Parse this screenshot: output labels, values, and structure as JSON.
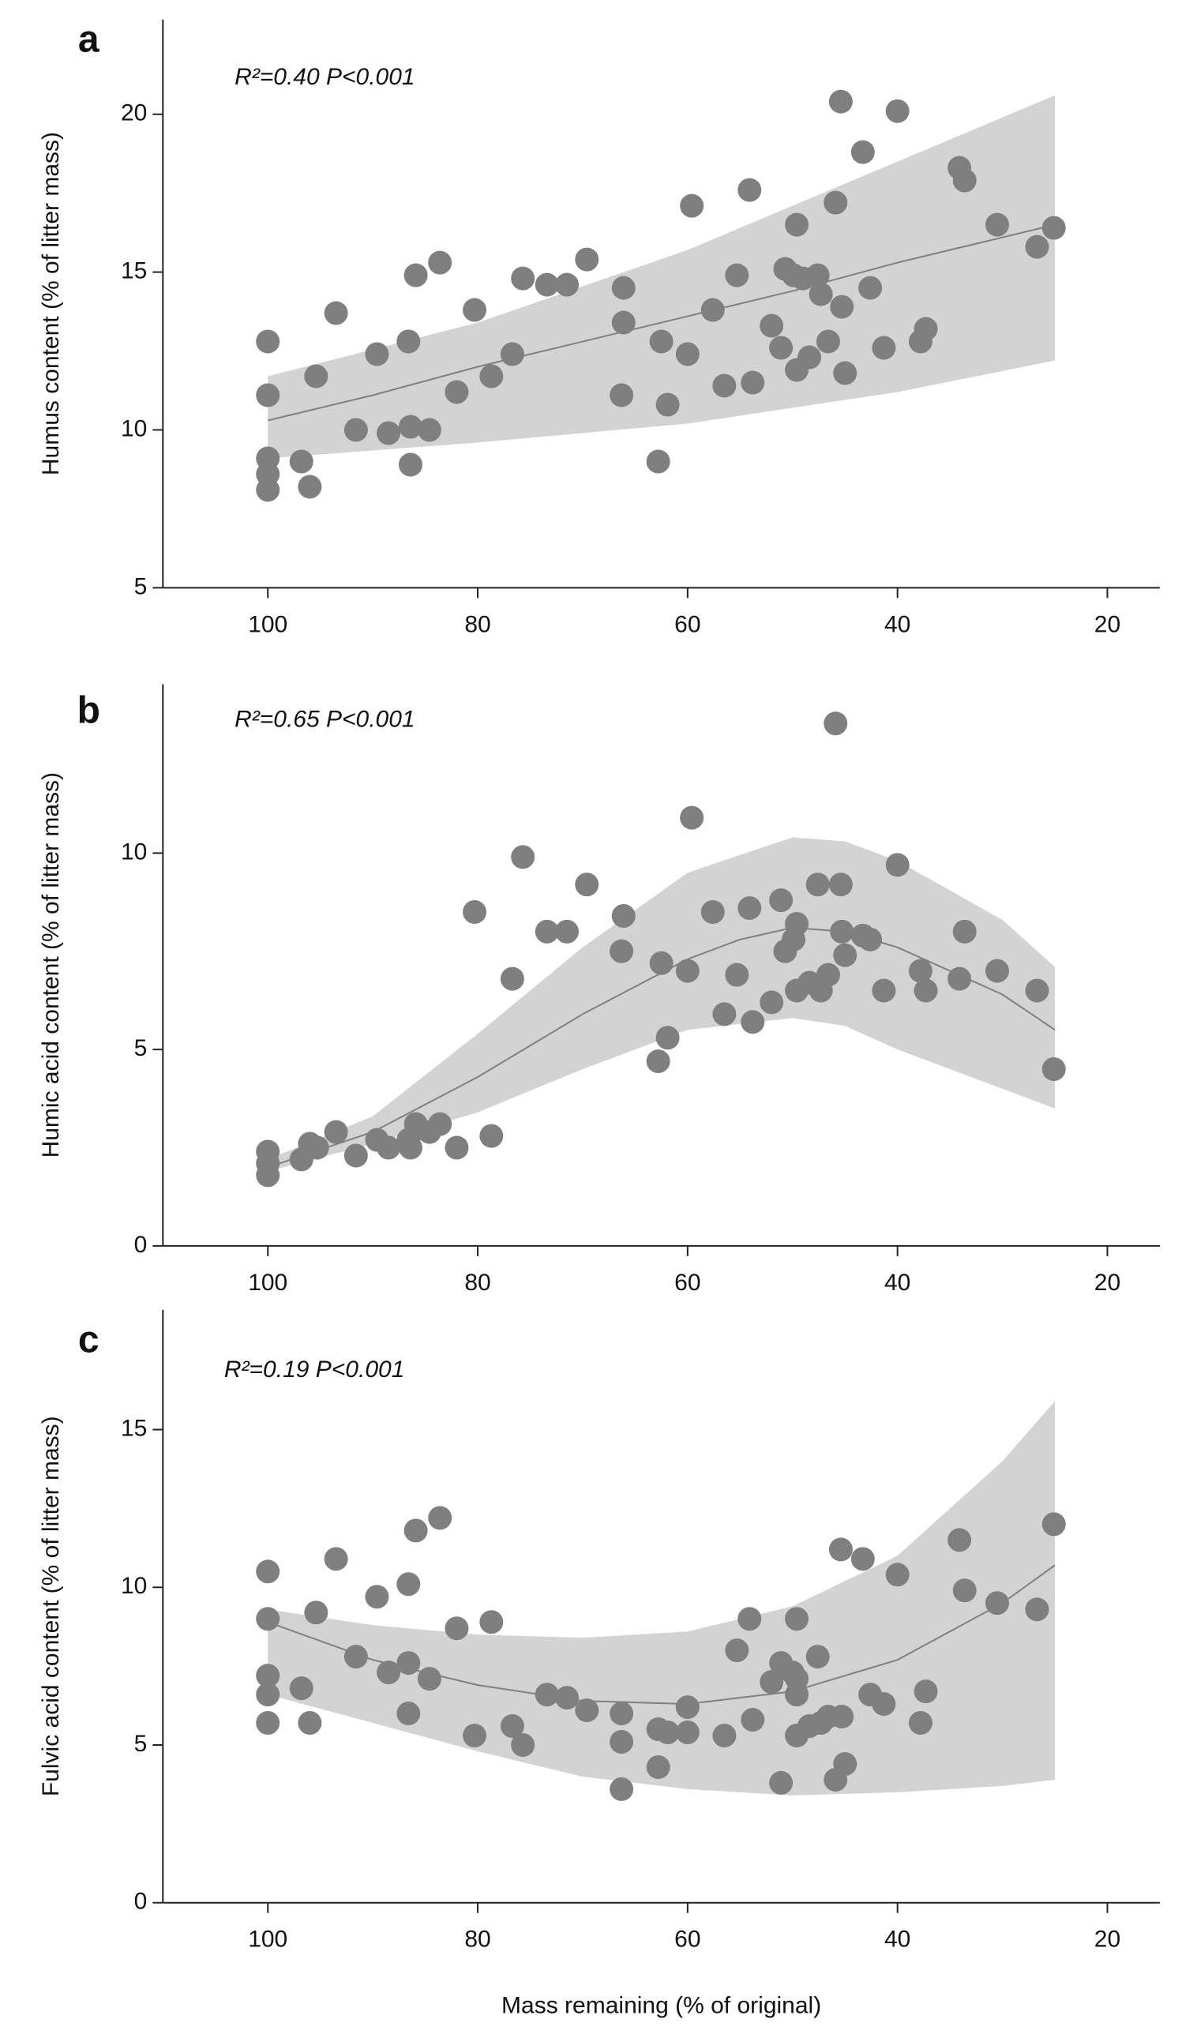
{
  "chart_data": [
    {
      "type": "scatter",
      "panel": "a",
      "annotation": "R²=0.40  P<0.001",
      "ylabel": "Humus content (% of litter mass)",
      "x": [
        100,
        100,
        100,
        100,
        100,
        96.8,
        96,
        95.4,
        93.5,
        91.6,
        89.6,
        88.5,
        86.6,
        86.4,
        86.4,
        85.9,
        84.6,
        83.6,
        82,
        80.3,
        78.7,
        76.7,
        75.7,
        73.4,
        71.5,
        69.6,
        66.3,
        66.1,
        66.1,
        62.8,
        62.5,
        61.9,
        60,
        59.6,
        57.6,
        56.5,
        55.3,
        54.1,
        53.8,
        52,
        51.1,
        50.7,
        49.9,
        49.6,
        49.6,
        49,
        48.4,
        47.6,
        47.3,
        46.6,
        45.9,
        45.4,
        45.3,
        45,
        43.3,
        42.6,
        41.3,
        40,
        37.8,
        37.3,
        34.1,
        33.6,
        30.5,
        26.7,
        25.1
      ],
      "values": [
        12.8,
        11.1,
        9.1,
        8.6,
        8.1,
        9.0,
        8.2,
        11.7,
        13.7,
        10.0,
        12.4,
        9.9,
        12.8,
        10.1,
        8.9,
        14.9,
        10.0,
        15.3,
        11.2,
        13.8,
        11.7,
        12.4,
        14.8,
        14.6,
        14.6,
        15.4,
        11.1,
        13.4,
        14.5,
        9.0,
        12.8,
        10.8,
        12.4,
        17.1,
        13.8,
        11.4,
        14.9,
        17.6,
        11.5,
        13.3,
        12.6,
        15.1,
        14.9,
        16.5,
        11.9,
        14.8,
        12.3,
        14.9,
        14.3,
        12.8,
        17.2,
        20.4,
        13.9,
        11.8,
        18.8,
        14.5,
        12.6,
        20.1,
        12.8,
        13.2,
        18.3,
        17.9,
        16.5,
        15.8,
        16.4
      ],
      "color": "#7f7f7f",
      "fit": {
        "x": [
          100,
          90,
          80,
          70,
          60,
          50,
          40,
          30,
          25
        ],
        "values": [
          10.3,
          11.1,
          12.0,
          12.8,
          13.6,
          14.4,
          15.3,
          16.1,
          16.5
        ],
        "color": "#808080"
      },
      "band": {
        "x": [
          100,
          80,
          60,
          40,
          25
        ],
        "upper": [
          11.7,
          13.4,
          15.7,
          18.5,
          20.6
        ],
        "lower": [
          9.1,
          9.6,
          10.2,
          11.2,
          12.2
        ],
        "color": "#d3d3d3"
      },
      "xlim": [
        110,
        15
      ],
      "xticks": [
        100,
        80,
        60,
        40,
        20
      ],
      "ylim": [
        5,
        23
      ],
      "yticks": [
        5,
        10,
        15,
        20
      ]
    },
    {
      "type": "scatter",
      "panel": "b",
      "annotation": "R²=0.65  P<0.001",
      "ylabel": "Humic acid content (% of litter mass)",
      "x": [
        100,
        100,
        100,
        96.8,
        96,
        95.3,
        93.5,
        91.6,
        89.6,
        88.5,
        86.6,
        86.4,
        85.9,
        84.6,
        83.6,
        82,
        80.3,
        78.7,
        76.7,
        75.7,
        73.4,
        71.5,
        69.6,
        66.3,
        66.1,
        62.8,
        62.5,
        61.9,
        60,
        59.6,
        57.6,
        56.5,
        55.3,
        54.1,
        53.8,
        52,
        51.1,
        50.7,
        49.9,
        49.6,
        49.6,
        48.4,
        47.6,
        47.3,
        46.6,
        45.9,
        45.4,
        45.3,
        45,
        43.3,
        42.6,
        41.3,
        40,
        37.8,
        37.3,
        34.1,
        33.6,
        30.5,
        26.7,
        25.1
      ],
      "values": [
        2.4,
        2.1,
        1.8,
        2.2,
        2.6,
        2.5,
        2.9,
        2.3,
        2.7,
        2.5,
        2.7,
        2.5,
        3.1,
        2.9,
        3.1,
        2.5,
        8.5,
        2.8,
        6.8,
        9.9,
        8.0,
        8.0,
        9.2,
        7.5,
        8.4,
        4.7,
        7.2,
        5.3,
        7.0,
        10.9,
        8.5,
        5.9,
        6.9,
        8.6,
        5.7,
        6.2,
        8.8,
        7.5,
        7.8,
        8.2,
        6.5,
        6.7,
        9.2,
        6.5,
        6.9,
        13.3,
        9.2,
        8.0,
        7.4,
        7.9,
        7.8,
        6.5,
        9.7,
        7.0,
        6.5,
        6.8,
        8.0,
        7.0,
        6.5,
        4.5
      ],
      "color": "#7f7f7f",
      "fit": {
        "x": [
          100,
          90,
          80,
          70,
          60,
          55,
          50,
          45,
          40,
          30,
          25
        ],
        "values": [
          2.0,
          2.9,
          4.3,
          5.9,
          7.3,
          7.8,
          8.1,
          8.0,
          7.6,
          6.4,
          5.5
        ],
        "color": "#808080"
      },
      "band": {
        "x": [
          100,
          90,
          80,
          70,
          60,
          50,
          45,
          40,
          30,
          25
        ],
        "upper": [
          2.2,
          3.3,
          5.4,
          7.6,
          9.5,
          10.4,
          10.3,
          9.8,
          8.3,
          7.1
        ],
        "lower": [
          1.9,
          2.6,
          3.4,
          4.5,
          5.5,
          5.8,
          5.6,
          5.0,
          4.0,
          3.5
        ],
        "color": "#d3d3d3"
      },
      "xlim": [
        110,
        15
      ],
      "xticks": [
        100,
        80,
        60,
        40,
        20
      ],
      "ylim": [
        0,
        14.3
      ],
      "yticks": [
        0,
        5,
        10
      ]
    },
    {
      "type": "scatter",
      "panel": "c",
      "annotation": "R²=0.19  P<0.001",
      "ylabel": "Fulvic acid content (% of litter mass)",
      "xlabel": "Mass remaining (% of original)",
      "x": [
        100,
        100,
        100,
        100,
        100,
        96.8,
        96,
        95.4,
        93.5,
        91.6,
        89.6,
        88.5,
        86.6,
        86.6,
        86.6,
        85.9,
        84.6,
        83.6,
        82,
        80.3,
        78.7,
        76.7,
        75.7,
        73.4,
        71.5,
        69.6,
        66.3,
        66.3,
        66.3,
        62.8,
        62.8,
        61.9,
        60,
        60,
        56.5,
        55.3,
        54.1,
        53.8,
        52,
        51.1,
        51.1,
        50,
        49.6,
        49.6,
        49.6,
        49.6,
        48.4,
        47.6,
        47.3,
        46.6,
        45.9,
        45.4,
        45.3,
        45,
        43.3,
        42.6,
        41.3,
        40,
        37.8,
        37.3,
        34.1,
        33.6,
        30.5,
        26.7,
        25.1
      ],
      "values": [
        10.5,
        9.0,
        7.2,
        6.6,
        5.7,
        6.8,
        5.7,
        9.2,
        10.9,
        7.8,
        9.7,
        7.3,
        10.1,
        7.6,
        6.0,
        11.8,
        7.1,
        12.2,
        8.7,
        5.3,
        8.9,
        5.6,
        5.0,
        6.6,
        6.5,
        6.1,
        3.6,
        6.0,
        5.1,
        4.3,
        5.5,
        5.4,
        6.2,
        5.4,
        5.3,
        8.0,
        9.0,
        5.8,
        7.0,
        3.8,
        7.6,
        7.3,
        9.0,
        6.6,
        7.1,
        5.3,
        5.6,
        7.8,
        5.7,
        5.9,
        3.9,
        11.2,
        5.9,
        4.4,
        10.9,
        6.6,
        6.3,
        10.4,
        5.7,
        6.7,
        11.5,
        9.9,
        9.5,
        9.3,
        12.0
      ],
      "color": "#7f7f7f",
      "fit": {
        "x": [
          100,
          90,
          80,
          70,
          60,
          50,
          40,
          30,
          25
        ],
        "values": [
          8.9,
          7.7,
          6.9,
          6.4,
          6.3,
          6.7,
          7.7,
          9.5,
          10.7
        ],
        "color": "#808080"
      },
      "band": {
        "x": [
          100,
          90,
          80,
          70,
          60,
          50,
          40,
          30,
          25
        ],
        "upper": [
          9.3,
          8.8,
          8.5,
          8.4,
          8.6,
          9.4,
          11.0,
          14.0,
          15.9
        ],
        "lower": [
          6.6,
          5.7,
          4.8,
          4.0,
          3.6,
          3.4,
          3.5,
          3.7,
          3.9
        ],
        "color": "#d3d3d3"
      },
      "xlim": [
        110,
        15
      ],
      "xticks": [
        100,
        80,
        60,
        40,
        20
      ],
      "ylim": [
        0,
        18.8
      ],
      "yticks": [
        0,
        5,
        10,
        15
      ]
    }
  ]
}
